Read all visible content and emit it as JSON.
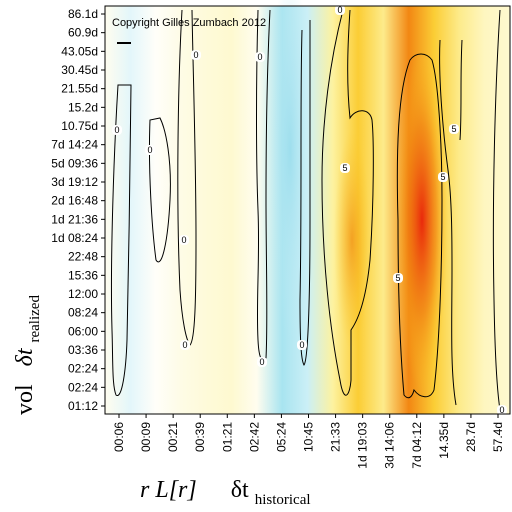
{
  "chart_data": {
    "type": "heatmap",
    "copyright": "Copyright Gilles Zumbach 2012",
    "x_axis": {
      "label_main": "r L[r]",
      "label_delta": "δt",
      "label_sub": "historical",
      "ticks": [
        "00:06",
        "00:09",
        "00:21",
        "00:39",
        "01:21",
        "02:42",
        "05:24",
        "10:45",
        "21:33",
        "1d 19:03",
        "3d 14:06",
        "7d 04:12",
        "14.35d",
        "28.7d",
        "57.4d"
      ]
    },
    "y_axis": {
      "label_main": "vol",
      "label_delta": "δt",
      "label_sub": "realized",
      "ticks": [
        "86.1d",
        "60.9d",
        "43.05d",
        "30.45d",
        "21.55d",
        "15.2d",
        "10.75d",
        "7d 14:24",
        "5d 09:36",
        "3d 19:12",
        "2d 16:48",
        "1d 21:36",
        "1d 08:24",
        "22:48",
        "15:36",
        "12:00",
        "08:24",
        "06:00",
        "03:36",
        "02:24",
        "02:24",
        "01:12"
      ]
    },
    "column_values": [
      0.05,
      -0.08,
      0.02,
      0.08,
      0.12,
      0.15,
      0.05,
      -0.25,
      -0.15,
      0.3,
      0.55,
      0.35,
      0.85,
      0.55,
      0.35,
      0.2,
      0.15
    ],
    "contour_labels": [
      "0",
      "0",
      "0",
      "0",
      "0",
      "0",
      "0",
      "0",
      "0",
      "5",
      "5",
      "5",
      "5",
      "0"
    ],
    "colors": {
      "negative": "#a8e4f0",
      "zero": "#ffffff",
      "low": "#fdf2a0",
      "mid": "#fbc520",
      "high": "#f07a10",
      "peak": "#e81a08"
    }
  }
}
